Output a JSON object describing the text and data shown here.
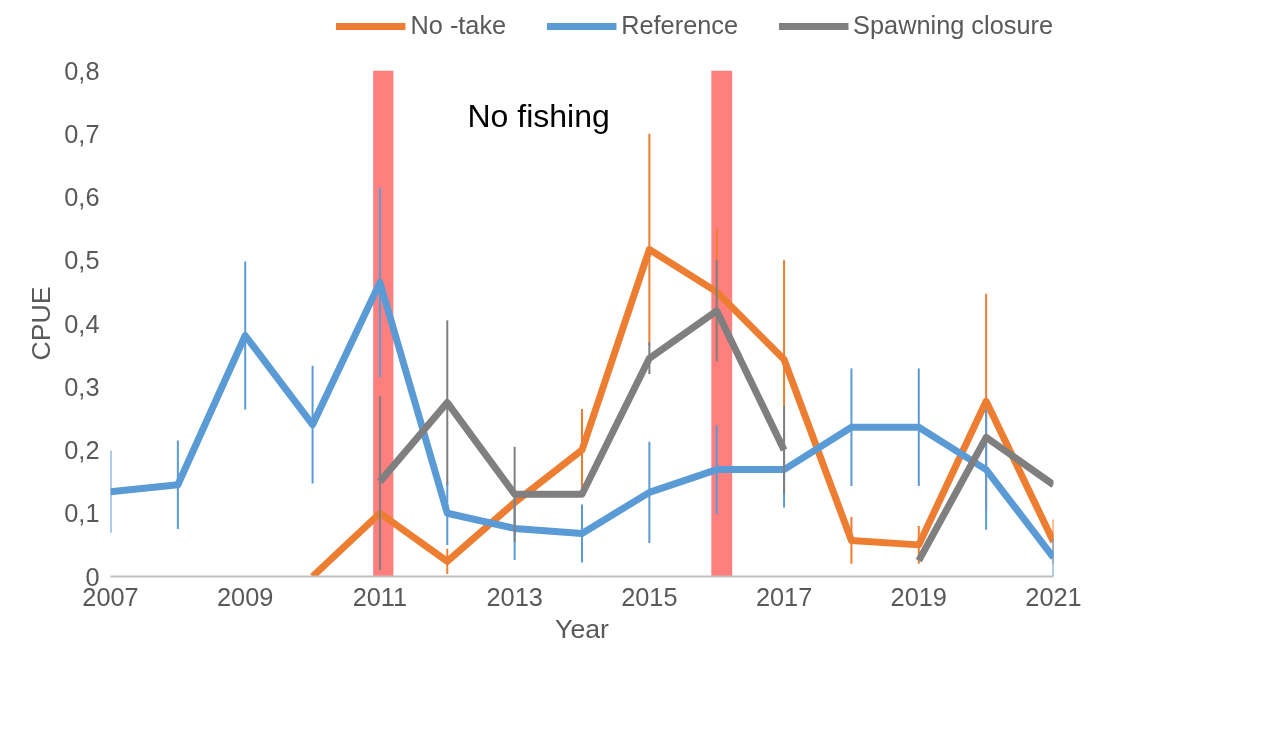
{
  "chart_data": {
    "type": "line",
    "xlabel": "Year",
    "ylabel": "CPUE",
    "x": [
      2007,
      2008,
      2009,
      2010,
      2011,
      2012,
      2013,
      2014,
      2015,
      2016,
      2017,
      2018,
      2019,
      2020,
      2021
    ],
    "series": [
      {
        "name": "No -take",
        "color": "#ed7d31",
        "values": [
          null,
          null,
          null,
          0,
          0.1,
          0.024,
          0.117,
          0.2,
          0.517,
          0.45,
          0.343,
          0.057,
          0.05,
          0.277,
          0.055
        ],
        "errors": [
          null,
          null,
          null,
          null,
          null,
          0.02,
          null,
          0.065,
          [
            0.365,
            0.7
          ],
          0.1,
          [
            0.267,
            0.5
          ],
          0.037,
          0.03,
          0.17,
          0.035
        ]
      },
      {
        "name": "Reference",
        "color": "#5b9bd5",
        "values": [
          0.134,
          0.145,
          0.381,
          0.24,
          0.465,
          0.1,
          0.076,
          0.068,
          0.133,
          0.169,
          0.169,
          0.236,
          0.236,
          0.169,
          0.03
        ],
        "errors": [
          0.065,
          0.07,
          0.117,
          0.093,
          0.15,
          0.05,
          0.05,
          0.046,
          0.08,
          0.07,
          0.06,
          0.093,
          0.093,
          0.095,
          0.03
        ]
      },
      {
        "name": "Spawning closure",
        "color": "#7f7f7f",
        "values": [
          null,
          null,
          null,
          null,
          0.15,
          0.275,
          0.13,
          0.13,
          0.345,
          0.42,
          0.2,
          null,
          0.025,
          0.22,
          0.145
        ],
        "errors": [
          null,
          null,
          null,
          null,
          [
            0.01,
            0.285
          ],
          0.13,
          0.075,
          null,
          0.025,
          0.08,
          0.07,
          null,
          null,
          null,
          null
        ]
      }
    ],
    "xlim": [
      2007,
      2021
    ],
    "xticks": [
      2007,
      2009,
      2011,
      2013,
      2015,
      2017,
      2019,
      2021
    ],
    "ylim": [
      0,
      0.8
    ],
    "yticks": [
      0,
      {
        "value": 0.1,
        "label": "0,1"
      },
      {
        "value": 0.2,
        "label": "0,2"
      },
      {
        "value": 0.3,
        "label": "0,3"
      },
      {
        "value": 0.4,
        "label": "0,4"
      },
      {
        "value": 0.5,
        "label": "0,5"
      },
      {
        "value": 0.6,
        "label": "0,6"
      },
      {
        "value": 0.7,
        "label": "0,7"
      },
      {
        "value": 0.8,
        "label": "0,8"
      }
    ],
    "bands": [
      {
        "axis": "x",
        "from": 2010.9,
        "to": 2011.2,
        "color": "#ff0000"
      },
      {
        "axis": "x",
        "from": 2015.92,
        "to": 2016.23,
        "color": "#ff0000"
      }
    ],
    "annotations": [
      "No fishing"
    ],
    "grid": false,
    "legend": "top",
    "marker": "none",
    "line_style": "solid"
  }
}
